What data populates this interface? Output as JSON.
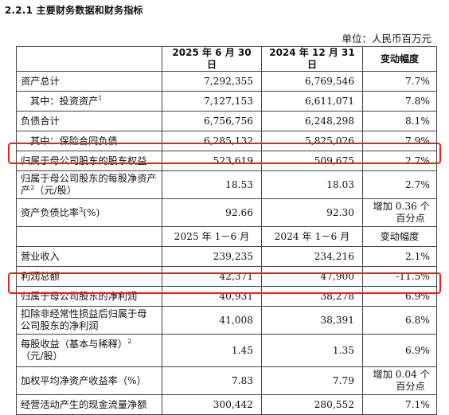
{
  "heading": "2.2.1  主要财务数据和财务指标",
  "unit": "单位：人民币百万元",
  "table": {
    "header1": {
      "c1": "",
      "c2": "2025 年 6 月 30 日",
      "c3": "2024 年 12 月 31 日",
      "c4": "变动幅度"
    },
    "rows1": [
      {
        "label": "资产总计",
        "sup": "",
        "suffix": "",
        "v1": "7,292,355",
        "v2": "6,769,546",
        "chg": "7.7%"
      },
      {
        "label": "其中：投资资产",
        "sup": "1",
        "suffix": "",
        "v1": "7,127,153",
        "v2": "6,611,071",
        "chg": "7.8%"
      },
      {
        "label": "负债合计",
        "sup": "",
        "suffix": "",
        "v1": "6,756,756",
        "v2": "6,248,298",
        "chg": "8.1%"
      },
      {
        "label": "其中：保险合同负债",
        "sup": "",
        "suffix": "",
        "v1": "6,285,132",
        "v2": "5,825,026",
        "chg": "7.9%"
      },
      {
        "label": "归属于母公司股东的股东权益",
        "sup": "",
        "suffix": "",
        "v1": "523,619",
        "v2": "509,675",
        "chg": "2.7%"
      },
      {
        "label": "归属于母公司股东的每股净资产",
        "sup": "2",
        "suffix": "（元/股）",
        "v1": "18.53",
        "v2": "18.03",
        "chg": "2.7%"
      },
      {
        "label": "资产负债比率",
        "sup": "3",
        "suffix": "(%)",
        "v1": "92.66",
        "v2": "92.30",
        "chg_line1": "增加 0.36 个",
        "chg_line2": "百分点"
      }
    ],
    "header2": {
      "c2": "2025 年 1－6 月",
      "c3": "2024 年 1－6 月",
      "c4": "变动幅度"
    },
    "rows2": [
      {
        "label": "营业收入",
        "v1": "239,235",
        "v2": "234,216",
        "chg": "2.1%"
      },
      {
        "label": "利润总额",
        "v1": "42,371",
        "v2": "47,900",
        "chg": "-11.5%"
      },
      {
        "label": "归属于母公司股东的净利润",
        "v1": "40,931",
        "v2": "38,278",
        "chg": "6.9%"
      },
      {
        "label_line1": "扣除非经常性损益后归属于母",
        "label_line2": "公司股东的净利润",
        "v1": "41,008",
        "v2": "38,391",
        "chg": "6.8%"
      },
      {
        "label_line1": "每股收益（基本与稀释）",
        "sup": "2",
        "label_line2": "（元/股）",
        "v1": "1.45",
        "v2": "1.35",
        "chg": "6.9%"
      },
      {
        "label": "加权平均净资产收益率（%）",
        "v1": "7.83",
        "v2": "7.79",
        "chg_line1": "增加 0.04 个",
        "chg_line2": "百分点"
      },
      {
        "label": "经营活动产生的现金流量净额",
        "v1": "300,442",
        "v2": "280,552",
        "chg": "7.1%"
      }
    ]
  },
  "highlight_color": "#e2231a"
}
